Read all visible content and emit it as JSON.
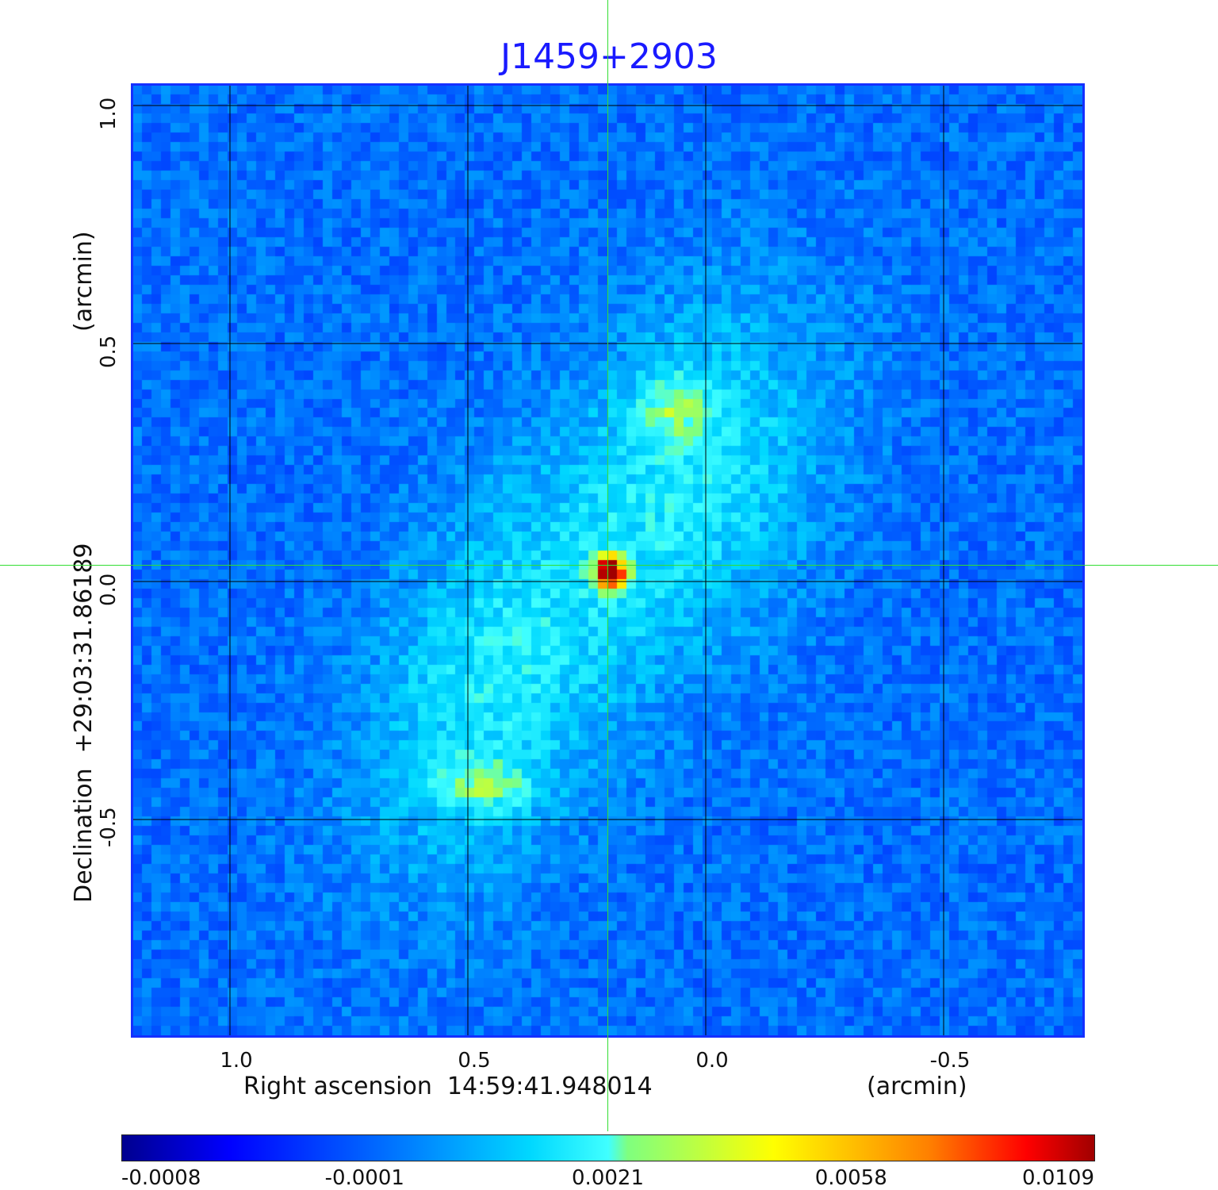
{
  "chart_data": {
    "type": "heatmap",
    "title": "J1459+2903",
    "xlabel": "Right ascension  14:59:41.948014",
    "xunit": "(arcmin)",
    "ylabel": "Declination  +29:03:31.86189",
    "yunit": "(arcmin)",
    "x_ticks": [
      "1.0",
      "0.5",
      "0.0",
      "-0.5"
    ],
    "x_tick_values": [
      1.0,
      0.5,
      0.0,
      -0.5
    ],
    "y_ticks": [
      "1.0",
      "0.5",
      "0.0",
      "-0.5"
    ],
    "y_tick_values": [
      1.0,
      0.5,
      0.0,
      -0.5
    ],
    "xlim": [
      1.2,
      -0.8
    ],
    "ylim": [
      -1.0,
      1.0
    ],
    "grid": true,
    "crosshair": [
      0.2,
      0.0
    ],
    "colorbar": {
      "position": "bottom",
      "ticks": [
        "-0.0008",
        "-0.0001",
        "0.0021",
        "0.0058",
        "0.0109"
      ],
      "tick_values": [
        -0.0008,
        -0.0001,
        0.0021,
        0.0058,
        0.0109
      ]
    },
    "features": [
      {
        "name": "core",
        "x": 0.2,
        "y": 0.02,
        "peak": 0.0109
      },
      {
        "name": "north-lobe-hotspot",
        "x": 0.07,
        "y": 0.37,
        "peak": 0.003
      },
      {
        "name": "south-lobe-hotspot",
        "x": 0.45,
        "y": -0.43,
        "peak": 0.003
      }
    ]
  },
  "colors": {
    "title": "#1a1aff",
    "frame": "#1530ff",
    "crosshair": "#33dd33",
    "grid": "#000000"
  }
}
